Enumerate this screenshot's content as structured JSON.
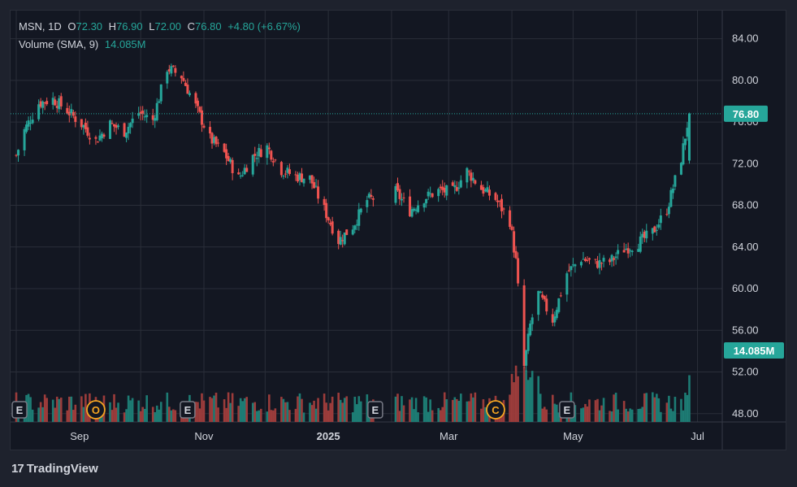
{
  "legend": {
    "symbol": "MSN",
    "interval": "1D",
    "open_label": "O",
    "open": "72.30",
    "high_label": "H",
    "high": "76.90",
    "low_label": "L",
    "low": "72.00",
    "close_label": "C",
    "close": "76.80",
    "change": "+4.80 (+6.67%)",
    "volume_label": "Volume (SMA, 9)",
    "volume_value": "14.085M"
  },
  "brand": {
    "name": "TradingView",
    "logo": "17"
  },
  "colors": {
    "up": "#26a69a",
    "down": "#ef5350",
    "up_vol": "#1d7c74",
    "down_vol": "#9c3c3b",
    "bg": "#131722",
    "grid": "#2a2e39",
    "text": "#d1d4dc"
  },
  "chart_data": {
    "type": "candlestick",
    "y_axis": {
      "ticks": [
        "84.00",
        "80.00",
        "76.00",
        "72.00",
        "68.00",
        "64.00",
        "60.00",
        "56.00",
        "52.00",
        "48.00"
      ],
      "range": [
        47.2,
        86.7
      ],
      "position": "right"
    },
    "x_axis": {
      "ticks": [
        "Sep",
        "Nov",
        "2025",
        "Mar",
        "May",
        "Jul"
      ]
    },
    "grid": true,
    "last_price_label": "76.80",
    "volume_label": "14.085M",
    "event_markers": [
      {
        "letter": "E",
        "type": "earnings"
      },
      {
        "letter": "O",
        "type": "other"
      },
      {
        "letter": "E",
        "type": "earnings"
      },
      {
        "letter": "E",
        "type": "earnings"
      },
      {
        "letter": "C",
        "type": "corporate-action"
      },
      {
        "letter": "E",
        "type": "earnings"
      }
    ],
    "series": [
      {
        "name": "MSN",
        "close_points": [
          [
            "2024-08-01",
            72.8
          ],
          [
            "2024-08-05",
            75.2
          ],
          [
            "2024-08-12",
            77.8
          ],
          [
            "2024-08-19",
            78.2
          ],
          [
            "2024-08-26",
            77.1
          ],
          [
            "2024-09-03",
            75.6
          ],
          [
            "2024-09-09",
            74.2
          ],
          [
            "2024-09-16",
            75.8
          ],
          [
            "2024-09-23",
            75.1
          ],
          [
            "2024-09-30",
            76.9
          ],
          [
            "2024-10-07",
            76.2
          ],
          [
            "2024-10-14",
            81.2
          ],
          [
            "2024-10-21",
            80.4
          ],
          [
            "2024-10-28",
            77.5
          ],
          [
            "2024-11-04",
            74.4
          ],
          [
            "2024-11-11",
            73.0
          ],
          [
            "2024-11-18",
            70.6
          ],
          [
            "2024-11-25",
            72.7
          ],
          [
            "2024-12-02",
            73.6
          ],
          [
            "2024-12-09",
            71.4
          ],
          [
            "2024-12-16",
            70.8
          ],
          [
            "2024-12-23",
            70.6
          ],
          [
            "2024-12-30",
            67.6
          ],
          [
            "2025-01-06",
            64.6
          ],
          [
            "2025-01-13",
            66.0
          ],
          [
            "2025-01-20",
            68.5
          ],
          [
            "2025-02-03",
            69.3
          ],
          [
            "2025-02-10",
            67.5
          ],
          [
            "2025-02-17",
            68.7
          ],
          [
            "2025-02-24",
            69.4
          ],
          [
            "2025-03-03",
            69.3
          ],
          [
            "2025-03-10",
            71.3
          ],
          [
            "2025-03-17",
            69.6
          ],
          [
            "2025-03-24",
            68.6
          ],
          [
            "2025-03-31",
            66.5
          ],
          [
            "2025-04-03",
            62.6
          ],
          [
            "2025-04-07",
            52.5
          ],
          [
            "2025-04-10",
            56.5
          ],
          [
            "2025-04-14",
            59.5
          ],
          [
            "2025-04-21",
            57.0
          ],
          [
            "2025-04-28",
            61.5
          ],
          [
            "2025-05-05",
            62.9
          ],
          [
            "2025-05-12",
            62.4
          ],
          [
            "2025-05-19",
            62.6
          ],
          [
            "2025-05-26",
            63.8
          ],
          [
            "2025-06-02",
            64.4
          ],
          [
            "2025-06-09",
            65.4
          ],
          [
            "2025-06-16",
            67.6
          ],
          [
            "2025-06-23",
            72.5
          ],
          [
            "2025-06-27",
            76.8
          ]
        ]
      }
    ]
  }
}
